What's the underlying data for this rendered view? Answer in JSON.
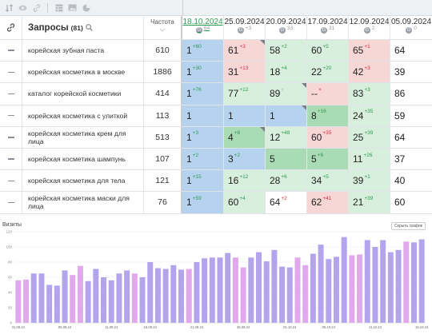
{
  "toolbar": {
    "icons": [
      "sort-icon",
      "eye-icon",
      "link-icon",
      "table-icon",
      "image-icon",
      "pie-chart-icon"
    ]
  },
  "table": {
    "header": {
      "title": "Запросы",
      "count": "(81)",
      "freq_label": "Частота",
      "dates": [
        {
          "label": "18.10.2024",
          "badge": "64",
          "active": true
        },
        {
          "label": "25.09.2024",
          "badge": "+3"
        },
        {
          "label": "20.09.2024",
          "badge": "33"
        },
        {
          "label": "17.09.2024",
          "badge": "31"
        },
        {
          "label": "12.09.2024",
          "badge": "2"
        },
        {
          "label": "05.09.2024",
          "badge": "0"
        }
      ]
    },
    "rows": [
      {
        "query": "корейская зубная паста",
        "freq": "610",
        "cells": [
          {
            "v": "1",
            "d": "+60",
            "t": "up",
            "bg": "blue"
          },
          {
            "v": "61",
            "d": "+3",
            "t": "down",
            "bg": "red",
            "corner": true
          },
          {
            "v": "58",
            "d": "+2",
            "t": "up",
            "bg": "green1"
          },
          {
            "v": "60",
            "d": "+5",
            "t": "up",
            "bg": "green1"
          },
          {
            "v": "65",
            "d": "+1",
            "t": "down",
            "bg": "red"
          },
          {
            "v": "64",
            "d": "",
            "t": "",
            "bg": "white"
          }
        ]
      },
      {
        "query": "корейская косметика в москве",
        "freq": "1886",
        "cells": [
          {
            "v": "1",
            "d": "+30",
            "t": "up",
            "bg": "blue"
          },
          {
            "v": "31",
            "d": "+13",
            "t": "down",
            "bg": "red"
          },
          {
            "v": "18",
            "d": "+4",
            "t": "up",
            "bg": "green1"
          },
          {
            "v": "22",
            "d": "+20",
            "t": "up",
            "bg": "green1"
          },
          {
            "v": "42",
            "d": "+3",
            "t": "down",
            "bg": "red"
          },
          {
            "v": "39",
            "d": "",
            "t": "",
            "bg": "white"
          }
        ]
      },
      {
        "query": "каталог корейской косметики",
        "freq": "414",
        "cells": [
          {
            "v": "1",
            "d": "+76",
            "t": "up",
            "bg": "blue"
          },
          {
            "v": "77",
            "d": "+12",
            "t": "up",
            "bg": "green1"
          },
          {
            "v": "89",
            "d": "↑",
            "t": "up",
            "bg": "green1",
            "corner": true
          },
          {
            "v": "--",
            "d": "×",
            "t": "down",
            "bg": "red"
          },
          {
            "v": "83",
            "d": "+3",
            "t": "up",
            "bg": "green1"
          },
          {
            "v": "86",
            "d": "",
            "t": "",
            "bg": "white"
          }
        ]
      },
      {
        "query": "корейская косметика с улиткой",
        "freq": "113",
        "cells": [
          {
            "v": "1",
            "d": "",
            "t": "",
            "bg": "blue"
          },
          {
            "v": "1",
            "d": "",
            "t": "",
            "bg": "blue"
          },
          {
            "v": "1",
            "d": "",
            "t": "",
            "bg": "blue",
            "corner": true
          },
          {
            "v": "8",
            "d": "+16",
            "t": "up",
            "bg": "green2"
          },
          {
            "v": "24",
            "d": "+35",
            "t": "up",
            "bg": "green1"
          },
          {
            "v": "59",
            "d": "",
            "t": "",
            "bg": "white"
          }
        ]
      },
      {
        "query": "корейская косметика крем для лица",
        "freq": "513",
        "cells": [
          {
            "v": "1",
            "d": "+3",
            "t": "up",
            "bg": "blue"
          },
          {
            "v": "4",
            "d": "+8",
            "t": "up",
            "bg": "green2",
            "corner": true
          },
          {
            "v": "12",
            "d": "+48",
            "t": "up",
            "bg": "green1"
          },
          {
            "v": "60",
            "d": "+35",
            "t": "down",
            "bg": "red"
          },
          {
            "v": "25",
            "d": "+39",
            "t": "up",
            "bg": "green1"
          },
          {
            "v": "64",
            "d": "",
            "t": "",
            "bg": "white"
          }
        ]
      },
      {
        "query": "корейская косметика шампунь",
        "freq": "107",
        "cells": [
          {
            "v": "1",
            "d": "+2",
            "t": "up",
            "bg": "blue"
          },
          {
            "v": "3",
            "d": "+2",
            "t": "up",
            "bg": "blue"
          },
          {
            "v": "5",
            "d": "",
            "t": "",
            "bg": "green2"
          },
          {
            "v": "5",
            "d": "+6",
            "t": "up",
            "bg": "green2"
          },
          {
            "v": "11",
            "d": "+26",
            "t": "up",
            "bg": "green1"
          },
          {
            "v": "37",
            "d": "",
            "t": "",
            "bg": "white"
          }
        ]
      },
      {
        "query": "корейская косметика для тела",
        "freq": "121",
        "cells": [
          {
            "v": "1",
            "d": "+15",
            "t": "up",
            "bg": "blue"
          },
          {
            "v": "16",
            "d": "+12",
            "t": "up",
            "bg": "green1"
          },
          {
            "v": "28",
            "d": "+6",
            "t": "up",
            "bg": "green1"
          },
          {
            "v": "34",
            "d": "+5",
            "t": "up",
            "bg": "green1"
          },
          {
            "v": "39",
            "d": "+1",
            "t": "up",
            "bg": "green1"
          },
          {
            "v": "40",
            "d": "",
            "t": "",
            "bg": "white"
          }
        ]
      },
      {
        "query": "корейская косметика маски для лица",
        "freq": "76",
        "cells": [
          {
            "v": "1",
            "d": "+59",
            "t": "up",
            "bg": "blue"
          },
          {
            "v": "60",
            "d": "+4",
            "t": "up",
            "bg": "green1"
          },
          {
            "v": "64",
            "d": "+2",
            "t": "down",
            "bg": "white"
          },
          {
            "v": "62",
            "d": "+41",
            "t": "down",
            "bg": "red"
          },
          {
            "v": "21",
            "d": "+39",
            "t": "up",
            "bg": "green1"
          },
          {
            "v": "60",
            "d": "",
            "t": "",
            "bg": "white"
          }
        ]
      }
    ]
  },
  "chart": {
    "title": "Визиты",
    "button_label": "Скрыть график"
  },
  "colors": {
    "bar": "#b3a4ec",
    "bar_weekend": "#e2a8ec",
    "blue": "#b5d3ef",
    "green1": "#d8efdd",
    "green2": "#a9dcb4",
    "red": "#f7d6d6"
  },
  "chart_data": {
    "type": "bar",
    "title": "Визиты",
    "ylim": [
      0,
      120
    ],
    "yticks": [
      0,
      20,
      40,
      60,
      80,
      100,
      120
    ],
    "xticks": [
      "31.08.24",
      "05.09.24",
      "11.09.24",
      "16.09.24",
      "21.09.24",
      "26.09.24",
      "01.10.24",
      "06.10.24",
      "11.10.24",
      "16.10.24"
    ],
    "values": [
      56,
      57,
      65,
      65,
      50,
      49,
      69,
      63,
      75,
      55,
      71,
      60,
      56,
      65,
      69,
      65,
      60,
      80,
      72,
      71,
      76,
      70,
      71,
      80,
      85,
      86,
      86,
      92,
      86,
      73,
      86,
      93,
      81,
      96,
      74,
      73,
      86,
      76,
      91,
      103,
      84,
      87,
      113,
      89,
      90,
      109,
      100,
      109,
      93,
      96,
      107,
      106,
      110
    ],
    "highlight": [
      0,
      1,
      7,
      8,
      15,
      22,
      28,
      29,
      36,
      37,
      43,
      44,
      50
    ]
  }
}
